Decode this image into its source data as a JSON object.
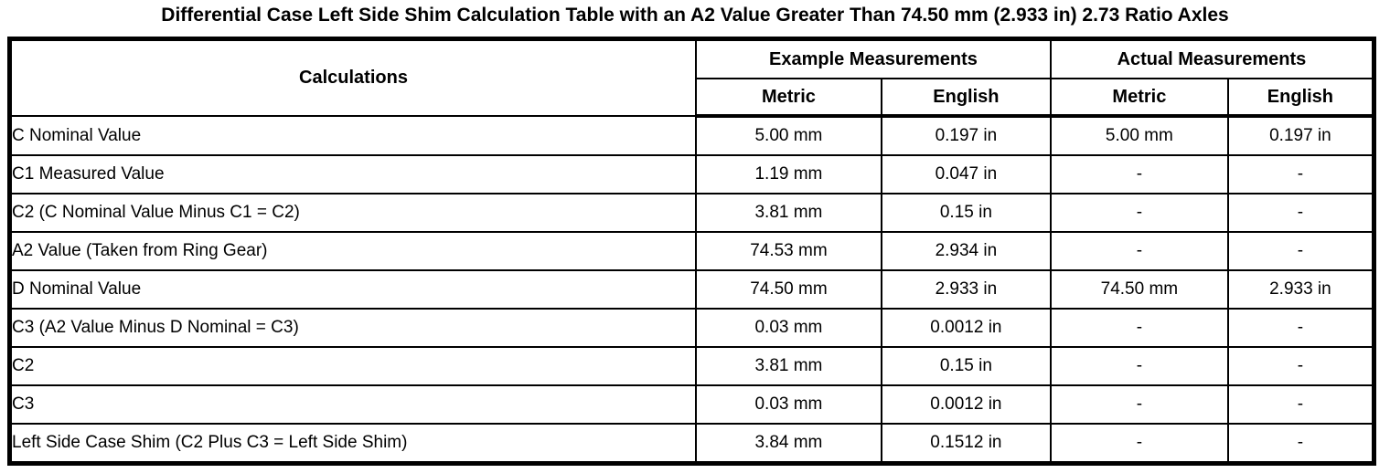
{
  "page_title": "Differential Case Left Side Shim Calculation Table with an A2 Value Greater Than 74.50 mm (2.933 in) 2.73 Ratio Axles",
  "colors": {
    "background": "#ffffff",
    "text": "#000000",
    "border": "#000000"
  },
  "table": {
    "header": {
      "calculations": "Calculations",
      "example_group": "Example Measurements",
      "actual_group": "Actual Measurements",
      "sub": [
        "Metric",
        "English",
        "Metric",
        "English"
      ]
    },
    "columns_keys": [
      "calculation",
      "example_metric",
      "example_english",
      "actual_metric",
      "actual_english"
    ],
    "rows": [
      {
        "calculation": "C Nominal Value",
        "example_metric": "5.00 mm",
        "example_english": "0.197 in",
        "actual_metric": "5.00 mm",
        "actual_english": "0.197 in"
      },
      {
        "calculation": "C1 Measured Value",
        "example_metric": "1.19 mm",
        "example_english": "0.047 in",
        "actual_metric": "-",
        "actual_english": "-"
      },
      {
        "calculation": "C2 (C Nominal Value Minus C1 = C2)",
        "example_metric": "3.81 mm",
        "example_english": "0.15 in",
        "actual_metric": "-",
        "actual_english": "-"
      },
      {
        "calculation": "A2 Value (Taken from Ring Gear)",
        "example_metric": "74.53 mm",
        "example_english": "2.934 in",
        "actual_metric": "-",
        "actual_english": "-"
      },
      {
        "calculation": "D Nominal Value",
        "example_metric": "74.50 mm",
        "example_english": "2.933 in",
        "actual_metric": "74.50 mm",
        "actual_english": "2.933 in"
      },
      {
        "calculation": "C3 (A2 Value Minus D Nominal = C3)",
        "example_metric": "0.03 mm",
        "example_english": "0.0012 in",
        "actual_metric": "-",
        "actual_english": "-"
      },
      {
        "calculation": "C2",
        "example_metric": "3.81 mm",
        "example_english": "0.15 in",
        "actual_metric": "-",
        "actual_english": "-"
      },
      {
        "calculation": "C3",
        "example_metric": "0.03 mm",
        "example_english": "0.0012 in",
        "actual_metric": "-",
        "actual_english": "-"
      },
      {
        "calculation": "Left Side Case Shim (C2 Plus C3 = Left Side Shim)",
        "example_metric": "3.84 mm",
        "example_english": "0.1512 in",
        "actual_metric": "-",
        "actual_english": "-"
      }
    ]
  }
}
